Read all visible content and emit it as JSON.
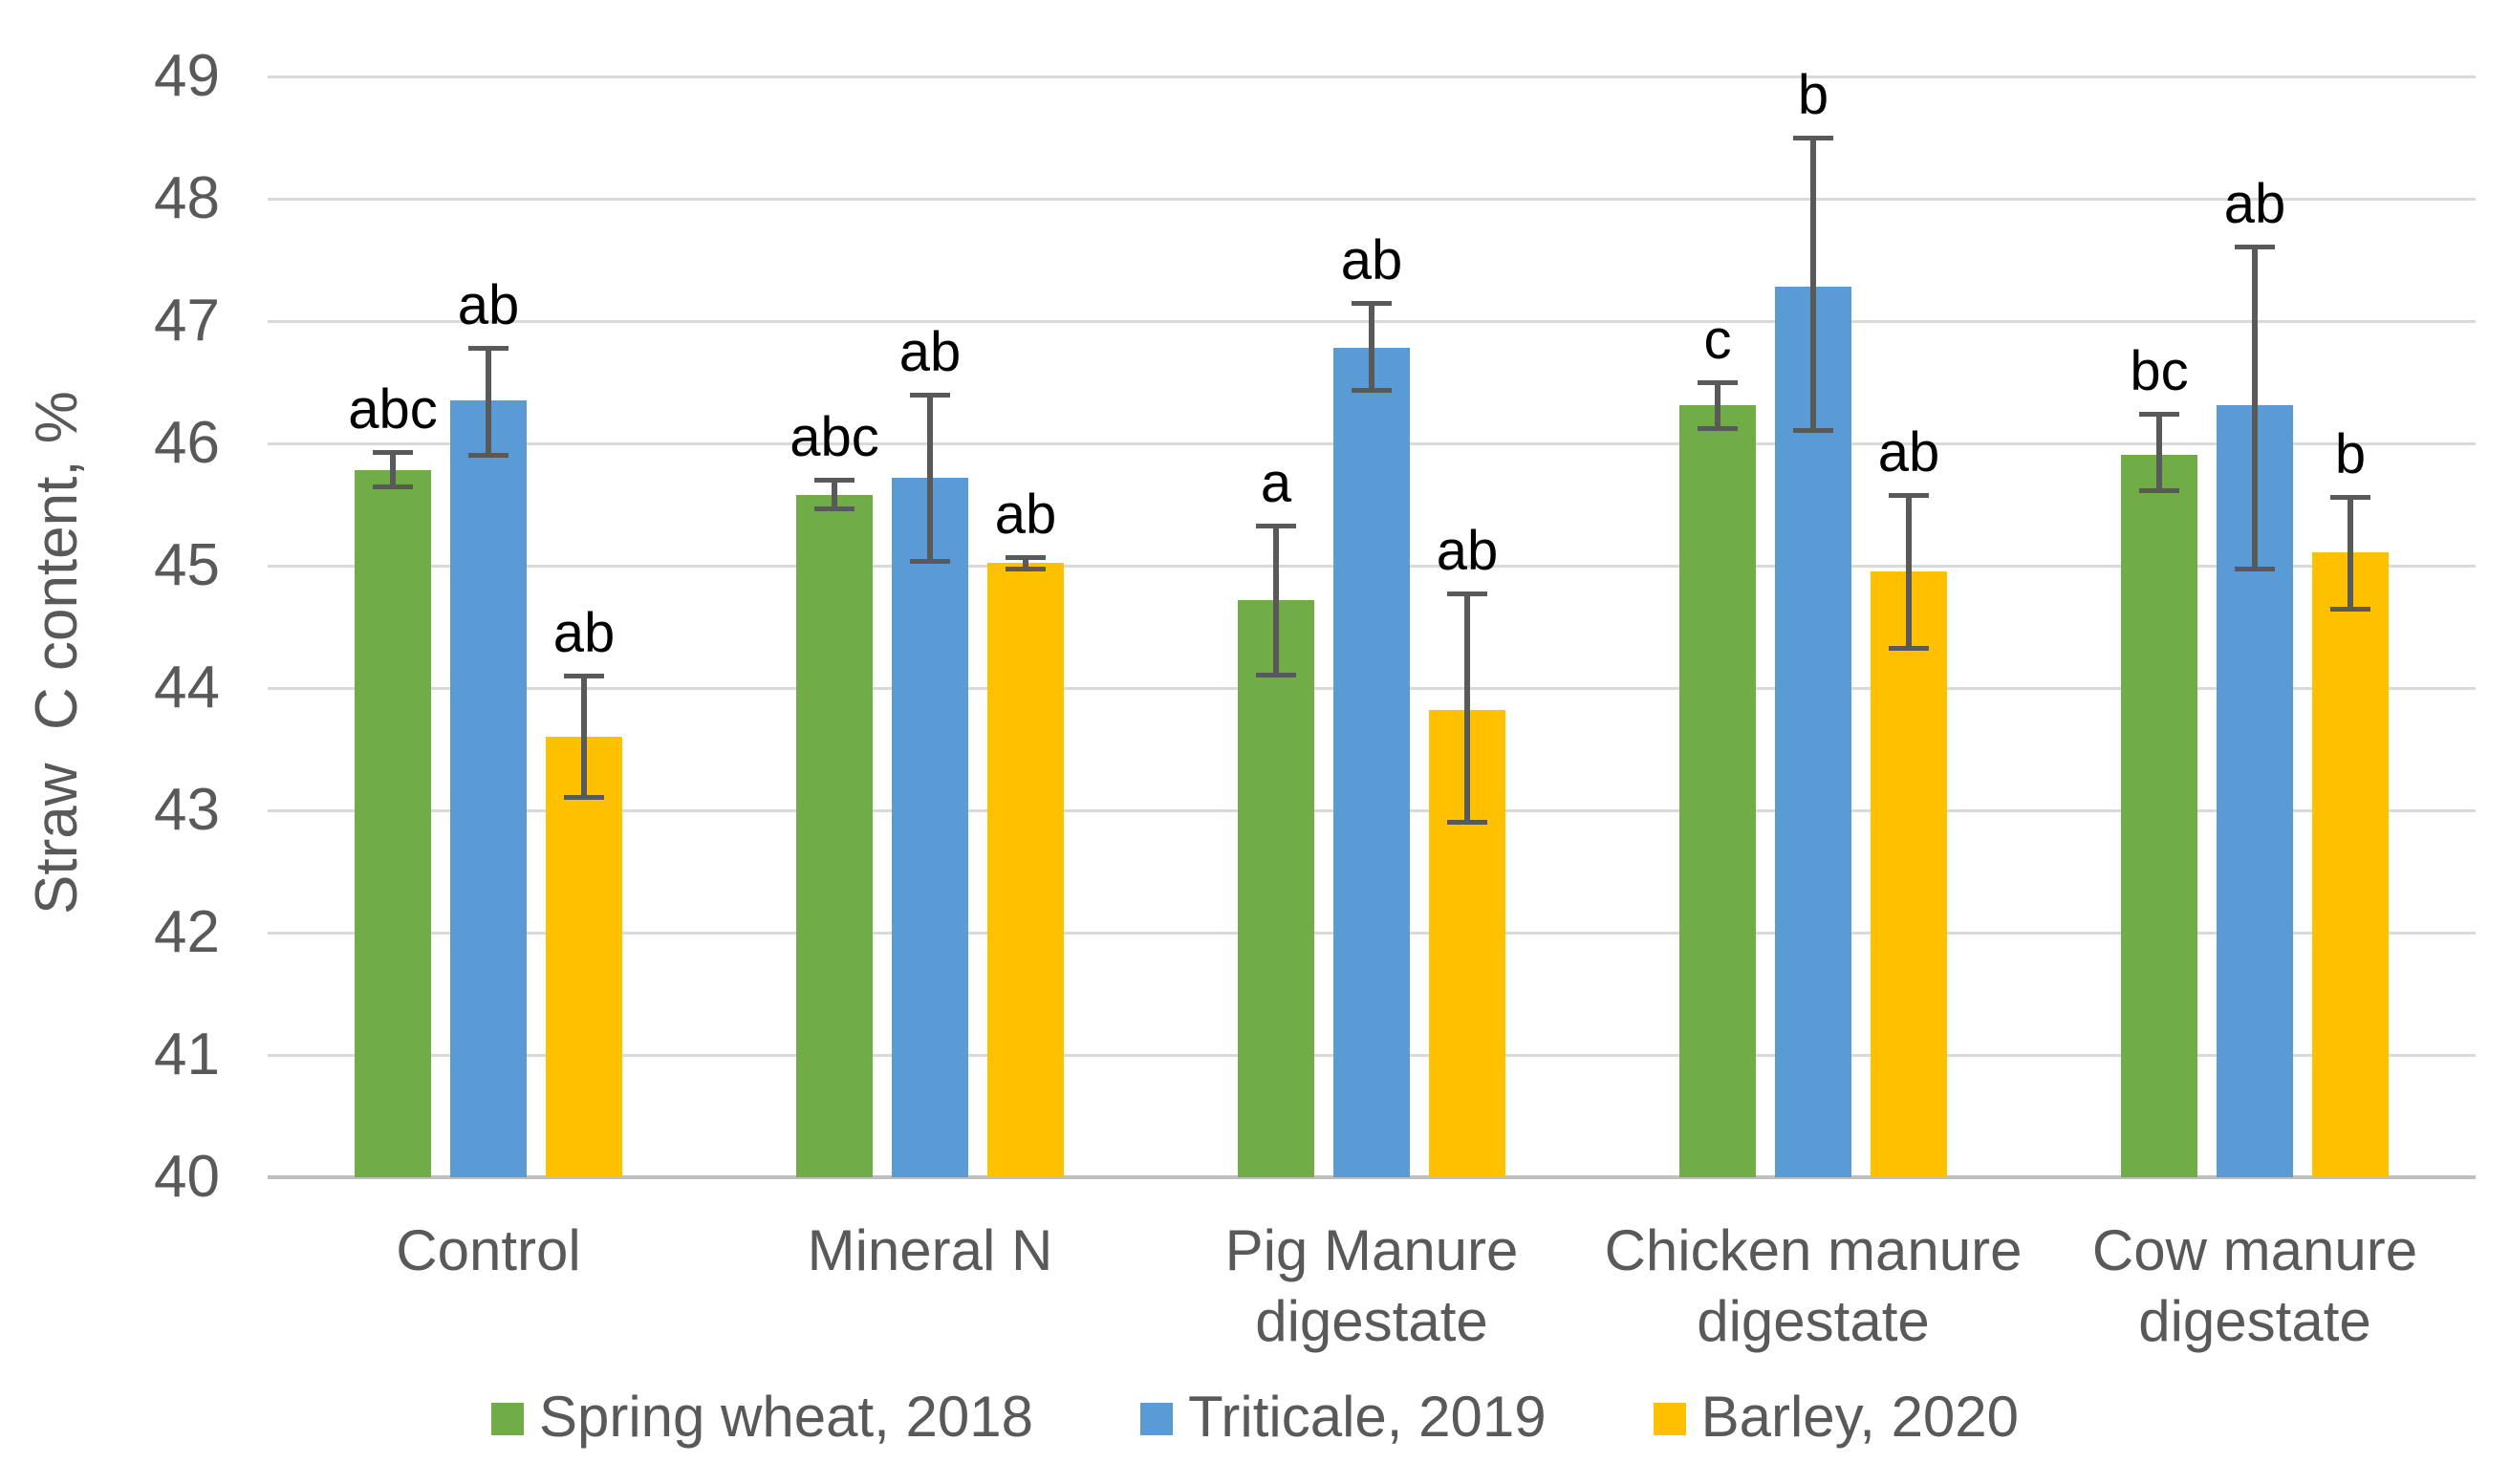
{
  "chart_data": {
    "type": "bar",
    "title": "",
    "xlabel": "",
    "ylabel": "Straw  C content, %",
    "ylim": [
      40,
      49
    ],
    "yticks": [
      40,
      41,
      42,
      43,
      44,
      45,
      46,
      47,
      48,
      49
    ],
    "grid": true,
    "legend_position": "bottom",
    "categories": [
      "Control",
      "Mineral N",
      "Pig Manure\ndigestate",
      "Chicken manure\ndigestate",
      "Cow manure\ndigestate"
    ],
    "series": [
      {
        "name": "Spring wheat, 2018",
        "color": "#70AD47",
        "values": [
          45.78,
          45.58,
          44.72,
          46.31,
          45.91
        ],
        "error_plus": [
          0.15,
          0.12,
          0.61,
          0.19,
          0.33
        ],
        "error_minus": [
          0.14,
          0.12,
          0.62,
          0.19,
          0.3
        ],
        "sig_letters": [
          "abc",
          "abc",
          "a",
          "c",
          "bc"
        ]
      },
      {
        "name": "Triticale, 2019",
        "color": "#5B9BD5",
        "values": [
          46.35,
          45.72,
          46.78,
          47.28,
          46.31
        ],
        "error_plus": [
          0.43,
          0.68,
          0.37,
          1.22,
          1.3
        ],
        "error_minus": [
          0.45,
          0.69,
          0.35,
          1.18,
          1.34
        ],
        "sig_letters": [
          "ab",
          "ab",
          "ab",
          "b",
          "ab"
        ]
      },
      {
        "name": "Barley, 2020",
        "color": "#FFC000",
        "values": [
          43.6,
          45.02,
          43.82,
          44.95,
          45.11
        ],
        "error_plus": [
          0.5,
          0.05,
          0.95,
          0.63,
          0.45
        ],
        "error_minus": [
          0.5,
          0.05,
          0.92,
          0.63,
          0.47
        ],
        "sig_letters": [
          "ab",
          "ab",
          "ab",
          "ab",
          "b"
        ]
      }
    ],
    "colors": {
      "gridline": "#D9D9D9",
      "axis_line": "#BFBFBF",
      "error_bar": "#595959",
      "tick_label": "#595959",
      "category_label": "#595959",
      "legend_label": "#595959",
      "sig_letter": "#000000"
    }
  }
}
